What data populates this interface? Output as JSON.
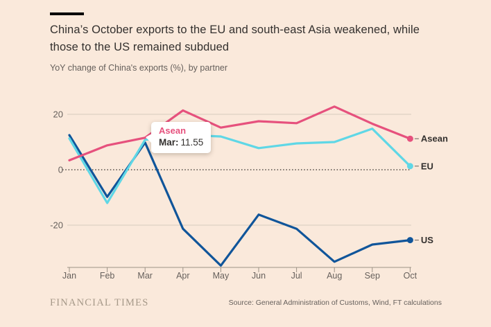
{
  "header": {
    "title_lines": [
      "China’s October exports to the EU and south-east Asia weakened, while",
      "those to the US remained subdued"
    ],
    "subtitle": "YoY change of China's exports (%), by partner"
  },
  "tooltip": {
    "series": "Asean",
    "point_label": "Mar:",
    "point_value": "11.55",
    "series_color": "#E6517D"
  },
  "chart_data": {
    "type": "line",
    "x": [
      "Jan",
      "Feb",
      "Mar",
      "Apr",
      "May",
      "Jun",
      "Jul",
      "Aug",
      "Sep",
      "Oct"
    ],
    "series": [
      {
        "name": "Asean",
        "color": "#E6517D",
        "values": [
          3.4,
          8.8,
          11.55,
          21.4,
          15.2,
          17.5,
          16.8,
          22.8,
          16.6,
          11.2
        ]
      },
      {
        "name": "EU",
        "color": "#5FD7E6",
        "values": [
          11.3,
          -12.0,
          10.8,
          12.6,
          12.0,
          7.8,
          9.5,
          10.0,
          14.8,
          1.3
        ]
      },
      {
        "name": "US",
        "color": "#10559A",
        "values": [
          12.5,
          -9.8,
          9.8,
          -21.3,
          -34.6,
          -16.2,
          -21.3,
          -33.2,
          -27.0,
          -25.4
        ]
      }
    ],
    "draw_order": [
      "US",
      "EU",
      "Asean"
    ],
    "yticks": [
      20,
      0,
      -20
    ],
    "ylim": [
      -35.25,
      28.75
    ],
    "zero_line": "dotted",
    "grid": "horizontal",
    "legend_position": "right-of-line-ends",
    "end_markers": true
  },
  "style": {
    "grid_color": "#D5CABD",
    "axis_color": "#9C9286",
    "zero_line_color": "#4E4943",
    "label_color": "#66605C",
    "legend_label_color": "#33302E"
  },
  "footer": {
    "brand": "FINANCIAL TIMES",
    "source": "Source: General Administration of Customs, Wind, FT calculations"
  }
}
